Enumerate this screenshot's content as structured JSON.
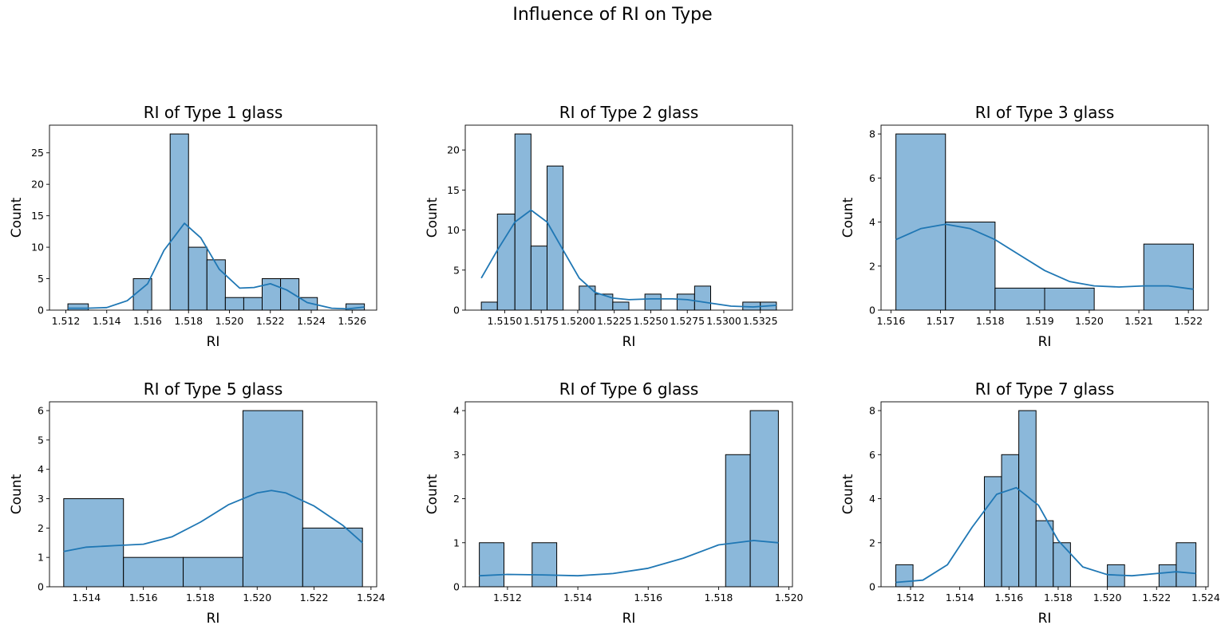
{
  "suptitle": "Influence of RI on Type",
  "colors": {
    "bar_fill": "#8bb8da",
    "bar_edge": "#000000",
    "kde": "#1f77b4",
    "axes": "#000000"
  },
  "chart_data": [
    {
      "type": "bar",
      "title": "RI of Type 1 glass",
      "xlabel": "RI",
      "ylabel": "Count",
      "xlim": [
        1.5112,
        1.5272
      ],
      "ylim": [
        0,
        29.4
      ],
      "xticks": [
        1.512,
        1.514,
        1.516,
        1.518,
        1.52,
        1.522,
        1.524,
        1.526
      ],
      "xtick_labels": [
        "1.512",
        "1.514",
        "1.516",
        "1.518",
        "1.520",
        "1.522",
        "1.524",
        "1.526"
      ],
      "yticks": [
        0,
        5,
        10,
        15,
        20,
        25
      ],
      "bins": [
        {
          "x0": 1.5121,
          "x1": 1.5131,
          "count": 1
        },
        {
          "x0": 1.5153,
          "x1": 1.5162,
          "count": 5
        },
        {
          "x0": 1.5171,
          "x1": 1.518,
          "count": 28
        },
        {
          "x0": 1.518,
          "x1": 1.5189,
          "count": 10
        },
        {
          "x0": 1.5189,
          "x1": 1.5198,
          "count": 8
        },
        {
          "x0": 1.5198,
          "x1": 1.5207,
          "count": 2
        },
        {
          "x0": 1.5207,
          "x1": 1.5216,
          "count": 2
        },
        {
          "x0": 1.5216,
          "x1": 1.5225,
          "count": 5
        },
        {
          "x0": 1.5225,
          "x1": 1.5234,
          "count": 5
        },
        {
          "x0": 1.5234,
          "x1": 1.5243,
          "count": 2
        },
        {
          "x0": 1.5257,
          "x1": 1.5266,
          "count": 1
        }
      ],
      "kde": [
        [
          1.5121,
          0.3
        ],
        [
          1.513,
          0.3
        ],
        [
          1.514,
          0.4
        ],
        [
          1.515,
          1.5
        ],
        [
          1.516,
          4.2
        ],
        [
          1.5168,
          9.5
        ],
        [
          1.5178,
          13.8
        ],
        [
          1.5186,
          11.5
        ],
        [
          1.5195,
          6.5
        ],
        [
          1.5205,
          3.5
        ],
        [
          1.5212,
          3.6
        ],
        [
          1.522,
          4.2
        ],
        [
          1.5228,
          3.2
        ],
        [
          1.5238,
          1.2
        ],
        [
          1.525,
          0.3
        ],
        [
          1.5258,
          0.2
        ],
        [
          1.5266,
          0.5
        ]
      ]
    },
    {
      "type": "bar",
      "title": "RI of Type 2 glass",
      "xlabel": "RI",
      "ylabel": "Count",
      "xlim": [
        1.5123,
        1.5347
      ],
      "ylim": [
        0,
        23.1
      ],
      "xticks": [
        1.515,
        1.5175,
        1.52,
        1.5225,
        1.525,
        1.5275,
        1.53,
        1.5325
      ],
      "xtick_labels": [
        "1.5150",
        "1.5175",
        "1.5200",
        "1.5225",
        "1.5250",
        "1.5275",
        "1.5300",
        "1.5325"
      ],
      "yticks": [
        0,
        5,
        10,
        15,
        20
      ],
      "bins": [
        {
          "x0": 1.5134,
          "x1": 1.5145,
          "count": 1
        },
        {
          "x0": 1.5145,
          "x1": 1.5157,
          "count": 12
        },
        {
          "x0": 1.5157,
          "x1": 1.5168,
          "count": 22
        },
        {
          "x0": 1.5168,
          "x1": 1.5179,
          "count": 8
        },
        {
          "x0": 1.5179,
          "x1": 1.519,
          "count": 18
        },
        {
          "x0": 1.5201,
          "x1": 1.5212,
          "count": 3
        },
        {
          "x0": 1.5212,
          "x1": 1.5224,
          "count": 2
        },
        {
          "x0": 1.5224,
          "x1": 1.5235,
          "count": 1
        },
        {
          "x0": 1.5246,
          "x1": 1.5257,
          "count": 2
        },
        {
          "x0": 1.5268,
          "x1": 1.528,
          "count": 2
        },
        {
          "x0": 1.528,
          "x1": 1.5291,
          "count": 3
        },
        {
          "x0": 1.5313,
          "x1": 1.5325,
          "count": 1
        },
        {
          "x0": 1.5325,
          "x1": 1.5336,
          "count": 1
        }
      ],
      "kde": [
        [
          1.5134,
          4.0
        ],
        [
          1.5145,
          7.5
        ],
        [
          1.5157,
          11.0
        ],
        [
          1.5168,
          12.5
        ],
        [
          1.5179,
          11.0
        ],
        [
          1.519,
          7.5
        ],
        [
          1.5201,
          4.0
        ],
        [
          1.5212,
          2.2
        ],
        [
          1.5224,
          1.5
        ],
        [
          1.5235,
          1.3
        ],
        [
          1.525,
          1.4
        ],
        [
          1.5265,
          1.4
        ],
        [
          1.5275,
          1.3
        ],
        [
          1.529,
          0.9
        ],
        [
          1.5305,
          0.5
        ],
        [
          1.532,
          0.4
        ],
        [
          1.5336,
          0.6
        ]
      ]
    },
    {
      "type": "bar",
      "title": "RI of Type 3 glass",
      "xlabel": "RI",
      "ylabel": "Count",
      "xlim": [
        1.5158,
        1.5224
      ],
      "ylim": [
        0,
        8.4
      ],
      "xticks": [
        1.516,
        1.517,
        1.518,
        1.519,
        1.52,
        1.521,
        1.522
      ],
      "xtick_labels": [
        "1.516",
        "1.517",
        "1.518",
        "1.519",
        "1.520",
        "1.521",
        "1.522"
      ],
      "yticks": [
        0,
        2,
        4,
        6,
        8
      ],
      "bins": [
        {
          "x0": 1.5161,
          "x1": 1.5171,
          "count": 8
        },
        {
          "x0": 1.5171,
          "x1": 1.5181,
          "count": 4
        },
        {
          "x0": 1.5181,
          "x1": 1.5191,
          "count": 1
        },
        {
          "x0": 1.5191,
          "x1": 1.5201,
          "count": 1
        },
        {
          "x0": 1.5211,
          "x1": 1.5221,
          "count": 3
        }
      ],
      "kde": [
        [
          1.5161,
          3.2
        ],
        [
          1.5166,
          3.7
        ],
        [
          1.5171,
          3.9
        ],
        [
          1.5176,
          3.7
        ],
        [
          1.5181,
          3.2
        ],
        [
          1.5186,
          2.5
        ],
        [
          1.5191,
          1.8
        ],
        [
          1.5196,
          1.3
        ],
        [
          1.5201,
          1.1
        ],
        [
          1.5206,
          1.05
        ],
        [
          1.5211,
          1.1
        ],
        [
          1.5216,
          1.1
        ],
        [
          1.5221,
          0.95
        ]
      ]
    },
    {
      "type": "bar",
      "title": "RI of Type 5 glass",
      "xlabel": "RI",
      "ylabel": "Count",
      "xlim": [
        1.5127,
        1.5242
      ],
      "ylim": [
        0,
        6.3
      ],
      "xticks": [
        1.514,
        1.516,
        1.518,
        1.52,
        1.522,
        1.524
      ],
      "xtick_labels": [
        "1.514",
        "1.516",
        "1.518",
        "1.520",
        "1.522",
        "1.524"
      ],
      "yticks": [
        0,
        1,
        2,
        3,
        4,
        5,
        6
      ],
      "bins": [
        {
          "x0": 1.5132,
          "x1": 1.5153,
          "count": 3
        },
        {
          "x0": 1.5153,
          "x1": 1.5174,
          "count": 1
        },
        {
          "x0": 1.5174,
          "x1": 1.5195,
          "count": 1
        },
        {
          "x0": 1.5195,
          "x1": 1.5216,
          "count": 6
        },
        {
          "x0": 1.5216,
          "x1": 1.5237,
          "count": 2
        }
      ],
      "kde": [
        [
          1.5132,
          1.2
        ],
        [
          1.514,
          1.35
        ],
        [
          1.515,
          1.4
        ],
        [
          1.516,
          1.45
        ],
        [
          1.517,
          1.7
        ],
        [
          1.518,
          2.2
        ],
        [
          1.519,
          2.8
        ],
        [
          1.52,
          3.2
        ],
        [
          1.5205,
          3.28
        ],
        [
          1.521,
          3.2
        ],
        [
          1.522,
          2.75
        ],
        [
          1.523,
          2.1
        ],
        [
          1.5237,
          1.5
        ]
      ]
    },
    {
      "type": "bar",
      "title": "RI of Type 6 glass",
      "xlabel": "RI",
      "ylabel": "Count",
      "xlim": [
        1.5108,
        1.5201
      ],
      "ylim": [
        0,
        4.2
      ],
      "xticks": [
        1.512,
        1.514,
        1.516,
        1.518,
        1.52
      ],
      "xtick_labels": [
        "1.512",
        "1.514",
        "1.516",
        "1.518",
        "1.520"
      ],
      "yticks": [
        0,
        1,
        2,
        3,
        4
      ],
      "bins": [
        {
          "x0": 1.5112,
          "x1": 1.5119,
          "count": 1
        },
        {
          "x0": 1.5127,
          "x1": 1.5134,
          "count": 1
        },
        {
          "x0": 1.5182,
          "x1": 1.5189,
          "count": 3
        },
        {
          "x0": 1.5189,
          "x1": 1.5197,
          "count": 4
        }
      ],
      "kde": [
        [
          1.5112,
          0.25
        ],
        [
          1.512,
          0.28
        ],
        [
          1.513,
          0.27
        ],
        [
          1.514,
          0.25
        ],
        [
          1.515,
          0.3
        ],
        [
          1.516,
          0.42
        ],
        [
          1.517,
          0.65
        ],
        [
          1.518,
          0.95
        ],
        [
          1.519,
          1.05
        ],
        [
          1.5197,
          1.0
        ]
      ]
    },
    {
      "type": "bar",
      "title": "RI of Type 7 glass",
      "xlabel": "RI",
      "ylabel": "Count",
      "xlim": [
        1.5108,
        1.5241
      ],
      "ylim": [
        0,
        8.4
      ],
      "xticks": [
        1.512,
        1.514,
        1.516,
        1.518,
        1.52,
        1.522,
        1.524
      ],
      "xtick_labels": [
        "1.512",
        "1.514",
        "1.516",
        "1.518",
        "1.520",
        "1.522",
        "1.524"
      ],
      "yticks": [
        0,
        2,
        4,
        6,
        8
      ],
      "bins": [
        {
          "x0": 1.5114,
          "x1": 1.5121,
          "count": 1
        },
        {
          "x0": 1.515,
          "x1": 1.5157,
          "count": 5
        },
        {
          "x0": 1.5157,
          "x1": 1.5164,
          "count": 6
        },
        {
          "x0": 1.5164,
          "x1": 1.5171,
          "count": 8
        },
        {
          "x0": 1.5171,
          "x1": 1.5178,
          "count": 3
        },
        {
          "x0": 1.5178,
          "x1": 1.5185,
          "count": 2
        },
        {
          "x0": 1.52,
          "x1": 1.5207,
          "count": 1
        },
        {
          "x0": 1.5221,
          "x1": 1.5228,
          "count": 1
        },
        {
          "x0": 1.5228,
          "x1": 1.5236,
          "count": 2
        }
      ],
      "kde": [
        [
          1.5114,
          0.2
        ],
        [
          1.5125,
          0.3
        ],
        [
          1.5135,
          1.0
        ],
        [
          1.5145,
          2.7
        ],
        [
          1.5155,
          4.2
        ],
        [
          1.5163,
          4.5
        ],
        [
          1.5172,
          3.7
        ],
        [
          1.518,
          2.1
        ],
        [
          1.519,
          0.9
        ],
        [
          1.52,
          0.55
        ],
        [
          1.521,
          0.5
        ],
        [
          1.522,
          0.6
        ],
        [
          1.5228,
          0.68
        ],
        [
          1.5236,
          0.6
        ]
      ]
    }
  ]
}
